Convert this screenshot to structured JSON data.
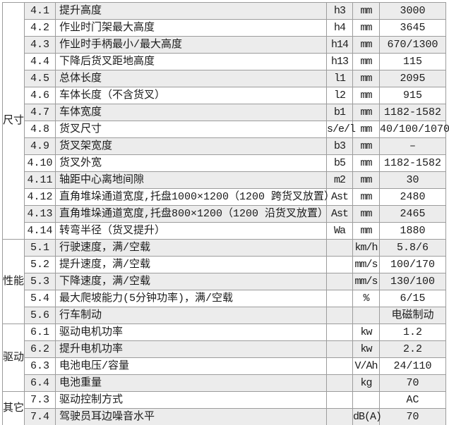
{
  "table": {
    "sections": [
      {
        "category": "尺寸",
        "rows": [
          {
            "no": "4.1",
            "desc": "提升高度",
            "sym": "h3",
            "unit": "mm",
            "value": "3000"
          },
          {
            "no": "4.2",
            "desc": "作业时门架最大高度",
            "sym": "h4",
            "unit": "mm",
            "value": "3645"
          },
          {
            "no": "4.3",
            "desc": "作业时手柄最小/最大高度",
            "sym": "h14",
            "unit": "mm",
            "value": "670/1300"
          },
          {
            "no": "4.4",
            "desc": "下降后货叉距地高度",
            "sym": "h13",
            "unit": "mm",
            "value": "115"
          },
          {
            "no": "4.5",
            "desc": "总体长度",
            "sym": "l1",
            "unit": "mm",
            "value": "2095"
          },
          {
            "no": "4.6",
            "desc": "车体长度（不含货叉）",
            "sym": "l2",
            "unit": "mm",
            "value": "915"
          },
          {
            "no": "4.7",
            "desc": "车体宽度",
            "sym": "b1",
            "unit": "mm",
            "value": "1182-1582"
          },
          {
            "no": "4.8",
            "desc": "货叉尺寸",
            "sym": "s/e/l",
            "unit": "mm",
            "value": "40/100/1070"
          },
          {
            "no": "4.9",
            "desc": "货叉架宽度",
            "sym": "b3",
            "unit": "mm",
            "value": "–"
          },
          {
            "no": "4.10",
            "desc": "货叉外宽",
            "sym": "b5",
            "unit": "mm",
            "value": "1182-1582"
          },
          {
            "no": "4.11",
            "desc": "轴距中心离地间隙",
            "sym": "m2",
            "unit": "mm",
            "value": "30"
          },
          {
            "no": "4.12",
            "desc": "直角堆垛通道宽度,托盘1000×1200（1200 跨货叉放置）",
            "sym": "Ast",
            "unit": "mm",
            "value": "2480"
          },
          {
            "no": "4.13",
            "desc": "直角堆垛通道宽度,托盘800×1200（1200 沿货叉放置）",
            "sym": "Ast",
            "unit": "mm",
            "value": "2465"
          },
          {
            "no": "4.14",
            "desc": "转弯半径（货叉提升）",
            "sym": "Wa",
            "unit": "mm",
            "value": "1880"
          }
        ]
      },
      {
        "category": "性能",
        "rows": [
          {
            "no": "5.1",
            "desc": "行驶速度，满/空载",
            "sym": "",
            "unit": "km/h",
            "value": "5.8/6"
          },
          {
            "no": "5.2",
            "desc": "提升速度，满/空载",
            "sym": "",
            "unit": "mm/s",
            "value": "100/170"
          },
          {
            "no": "5.3",
            "desc": "下降速度，满/空载",
            "sym": "",
            "unit": "mm/s",
            "value": "130/100"
          },
          {
            "no": "5.4",
            "desc": "最大爬坡能力(5分钟功率)，满/空载",
            "sym": "",
            "unit": "%",
            "value": "6/15"
          },
          {
            "no": "5.6",
            "desc": "行车制动",
            "sym": "",
            "unit": "",
            "value": "电磁制动"
          }
        ]
      },
      {
        "category": "驱动",
        "rows": [
          {
            "no": "6.1",
            "desc": "驱动电机功率",
            "sym": "",
            "unit": "kw",
            "value": "1.2"
          },
          {
            "no": "6.2",
            "desc": "提升电机功率",
            "sym": "",
            "unit": "kw",
            "value": "2.2"
          },
          {
            "no": "6.3",
            "desc": "电池电压/容量",
            "sym": "",
            "unit": "V/Ah",
            "value": "24/110"
          },
          {
            "no": "6.4",
            "desc": "电池重量",
            "sym": "",
            "unit": "kg",
            "value": "70"
          }
        ]
      },
      {
        "category": "其它",
        "rows": [
          {
            "no": "7.3",
            "desc": "驱动控制方式",
            "sym": "",
            "unit": "",
            "value": "AC"
          },
          {
            "no": "7.4",
            "desc": "驾驶员耳边噪音水平",
            "sym": "",
            "unit": "dB(A)",
            "value": "70"
          }
        ]
      }
    ]
  },
  "colors": {
    "stripe": "#ececec",
    "border": "#9c9c9c",
    "text": "#1b1b1b",
    "background": "#ffffff"
  }
}
